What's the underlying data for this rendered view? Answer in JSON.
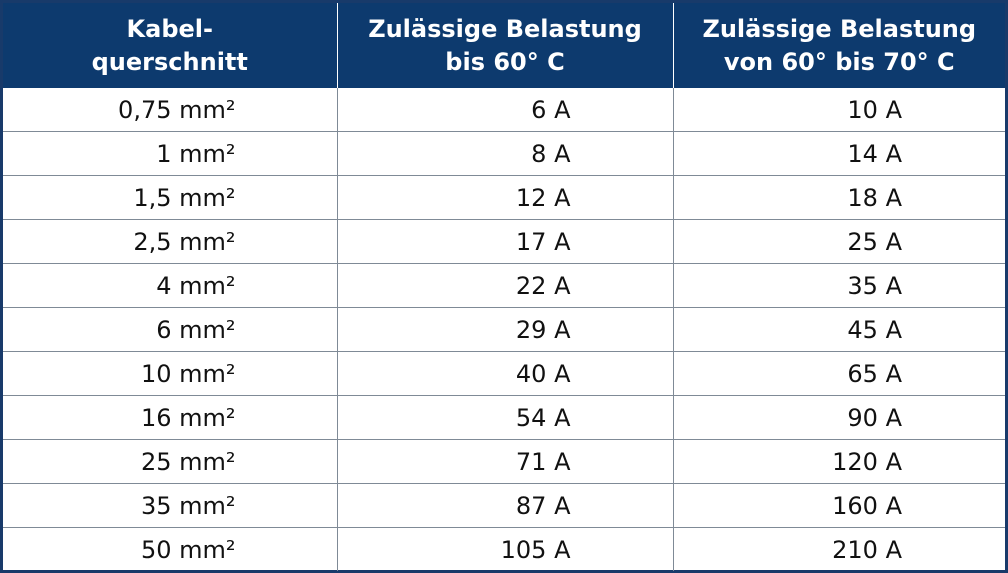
{
  "table": {
    "headers": [
      [
        "Kabel-",
        "querschnitt"
      ],
      [
        "Zulässige Belastung",
        "bis 60° C"
      ],
      [
        "Zulässige Belastung",
        "von 60° bis 70° C"
      ]
    ],
    "rows": [
      [
        "0,75 mm²",
        "6 A",
        "10 A"
      ],
      [
        "1 mm²",
        "8 A",
        "14 A"
      ],
      [
        "1,5 mm²",
        "12 A",
        "18 A"
      ],
      [
        "2,5 mm²",
        "17 A",
        "25 A"
      ],
      [
        "4 mm²",
        "22 A",
        "35 A"
      ],
      [
        "6 mm²",
        "29 A",
        "45 A"
      ],
      [
        "10 mm²",
        "40 A",
        "65 A"
      ],
      [
        "16 mm²",
        "54 A",
        "90 A"
      ],
      [
        "25 mm²",
        "71 A",
        "120 A"
      ],
      [
        "35 mm²",
        "87 A",
        "160 A"
      ],
      [
        "50 mm²",
        "105 A",
        "210 A"
      ]
    ]
  },
  "colors": {
    "header_background": "#0d3a6e",
    "header_text": "#ffffff",
    "border": "#183a6a"
  }
}
